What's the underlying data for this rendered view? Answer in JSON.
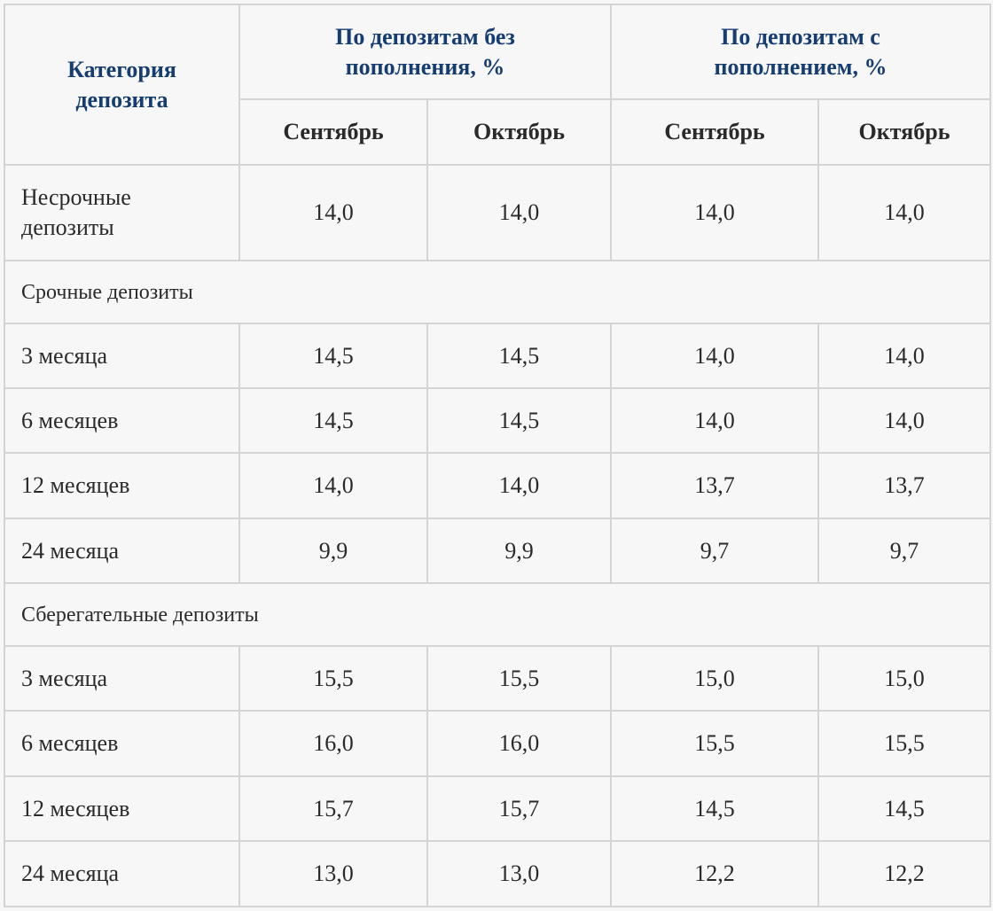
{
  "header": {
    "category": "Категория депозита",
    "group_without": "По депозитам без пополнения, %",
    "group_with": "По депозитам с пополнением, %",
    "months": [
      "Сентябрь",
      "Октябрь",
      "Сентябрь",
      "Октябрь"
    ]
  },
  "rows": {
    "nonterm": {
      "label": "Несрочные депозиты",
      "values": [
        "14,0",
        "14,0",
        "14,0",
        "14,0"
      ]
    },
    "section_term": "Срочные депозиты",
    "term": [
      {
        "label": "3 месяца",
        "values": [
          "14,5",
          "14,5",
          "14,0",
          "14,0"
        ]
      },
      {
        "label": "6 месяцев",
        "values": [
          "14,5",
          "14,5",
          "14,0",
          "14,0"
        ]
      },
      {
        "label": "12 месяцев",
        "values": [
          "14,0",
          "14,0",
          "13,7",
          "13,7"
        ]
      },
      {
        "label": "24 месяца",
        "values": [
          "9,9",
          "9,9",
          "9,7",
          "9,7"
        ]
      }
    ],
    "section_savings": "Сберегательные депозиты",
    "savings": [
      {
        "label": "3 месяца",
        "values": [
          "15,5",
          "15,5",
          "15,0",
          "15,0"
        ]
      },
      {
        "label": "6 месяцев",
        "values": [
          "16,0",
          "16,0",
          "15,5",
          "15,5"
        ]
      },
      {
        "label": "12 месяцев",
        "values": [
          "15,7",
          "15,7",
          "14,5",
          "14,5"
        ]
      },
      {
        "label": "24 месяца",
        "values": [
          "13,0",
          "13,0",
          "12,2",
          "12,2"
        ]
      }
    ]
  },
  "colors": {
    "header_blue": "#163d72",
    "border": "#d4d4d4",
    "background": "#f7f7f7"
  }
}
